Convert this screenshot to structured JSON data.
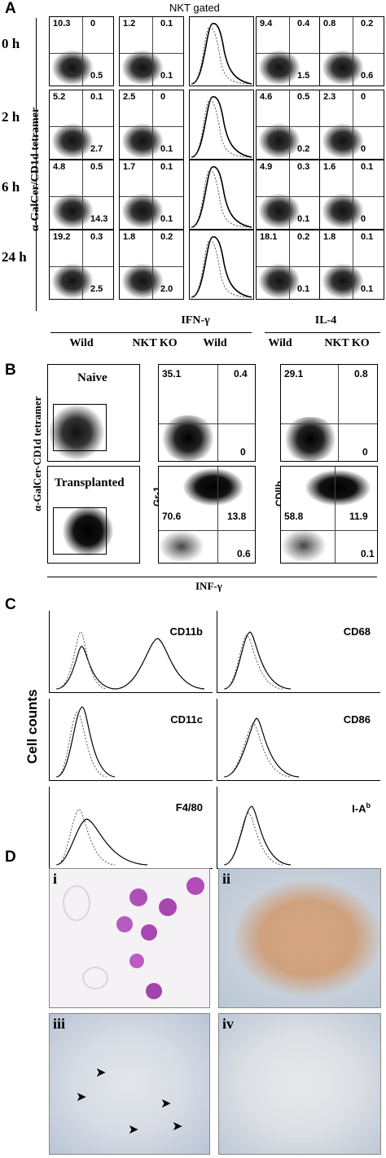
{
  "panelA": {
    "letter": "A",
    "header": "NKT gated",
    "ylabel": "α-GalCer/CD1d tetramer",
    "rows": [
      {
        "time": "0 h",
        "p1": [
          "10.3",
          "0",
          "0.5"
        ],
        "p2": [
          "1.2",
          "0.1",
          "0.1"
        ],
        "p4": [
          "9.4",
          "0.4",
          "1.5"
        ],
        "p5": [
          "0.8",
          "0.2",
          "0.6"
        ]
      },
      {
        "time": "2 h",
        "p1": [
          "5.2",
          "0.1",
          "2.7"
        ],
        "p2": [
          "2.5",
          "0",
          "0.1"
        ],
        "p4": [
          "4.6",
          "0.5",
          "0.2"
        ],
        "p5": [
          "2.3",
          "0",
          "0"
        ]
      },
      {
        "time": "6 h",
        "p1": [
          "4.8",
          "0.5",
          "14.3"
        ],
        "p2": [
          "1.7",
          "0.1",
          "0.1"
        ],
        "p4": [
          "4.9",
          "0.3",
          "0.1"
        ],
        "p5": [
          "1.6",
          "0.1",
          "0"
        ]
      },
      {
        "time": "24 h",
        "p1": [
          "19.2",
          "0.3",
          "2.5"
        ],
        "p2": [
          "1.8",
          "0.2",
          "2.0"
        ],
        "p4": [
          "18.1",
          "0.2",
          "0.1"
        ],
        "p5": [
          "1.8",
          "0.1",
          "0.1"
        ]
      }
    ],
    "group_labels": [
      "IFN-γ",
      "IL-4"
    ],
    "columns": [
      "Wild",
      "NKT KO",
      "Wild",
      "Wild",
      "NKT KO"
    ]
  },
  "panelB": {
    "letter": "B",
    "ylabel": "α-GalCer-CD1d tetramer",
    "naive": "Naive",
    "transplanted": "Transplanted",
    "gr1": "Gr-1",
    "cd11b": "CDllb",
    "xlabel": "INF-γ",
    "gr1_top": [
      "35.1",
      "0.4",
      "0"
    ],
    "gr1_bot": [
      "70.6",
      "13.8",
      "0.6"
    ],
    "cd11b_top": [
      "29.1",
      "0.8",
      "0"
    ],
    "cd11b_bot": [
      "58.8",
      "11.9",
      "0.1"
    ]
  },
  "panelC": {
    "letter": "C",
    "ylabel": "Cell counts",
    "markers": [
      "CD11b",
      "CD68",
      "CD11c",
      "CD86",
      "F4/80",
      "I-A"
    ],
    "superscript": "b"
  },
  "panelD": {
    "letter": "D",
    "tiles": [
      "i",
      "ii",
      "iii",
      "iv"
    ]
  }
}
